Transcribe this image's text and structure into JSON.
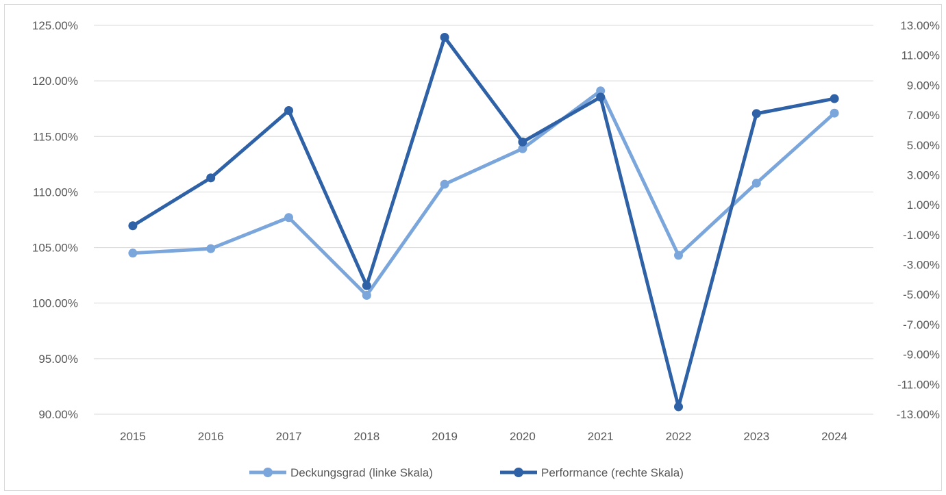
{
  "chart_data": {
    "type": "line",
    "categories": [
      "2015",
      "2016",
      "2017",
      "2018",
      "2019",
      "2020",
      "2021",
      "2022",
      "2023",
      "2024"
    ],
    "series": [
      {
        "name": "Deckungsgrad (linke Skala)",
        "axis": "left",
        "color": "#7aa6dc",
        "values": [
          104.5,
          104.9,
          107.7,
          100.7,
          110.7,
          113.9,
          119.1,
          104.3,
          110.8,
          117.1
        ]
      },
      {
        "name": "Performance (rechte Skala)",
        "axis": "right",
        "color": "#2e61a6",
        "values": [
          -0.4,
          2.8,
          7.3,
          -4.4,
          12.2,
          5.2,
          8.2,
          -12.5,
          7.1,
          8.1
        ]
      }
    ],
    "y_left": {
      "range": [
        90,
        125
      ],
      "ticks": [
        90,
        95,
        100,
        105,
        110,
        115,
        120,
        125
      ],
      "tick_labels": [
        "90.00%",
        "95.00%",
        "100.00%",
        "105.00%",
        "110.00%",
        "115.00%",
        "120.00%",
        "125.00%"
      ]
    },
    "y_right": {
      "range": [
        -13,
        13
      ],
      "ticks": [
        -13,
        -11,
        -9,
        -7,
        -5,
        -3,
        -1,
        1,
        3,
        5,
        7,
        9,
        11,
        13
      ],
      "tick_labels": [
        "-13.00%",
        "-11.00%",
        "-9.00%",
        "-7.00%",
        "-5.00%",
        "-3.00%",
        "-1.00%",
        "1.00%",
        "3.00%",
        "5.00%",
        "7.00%",
        "9.00%",
        "11.00%",
        "13.00%"
      ]
    },
    "grid": true,
    "legend_position": "bottom-center",
    "gridline_color": "#d9d9d9",
    "title": "",
    "xlabel": "",
    "ylabel": ""
  }
}
